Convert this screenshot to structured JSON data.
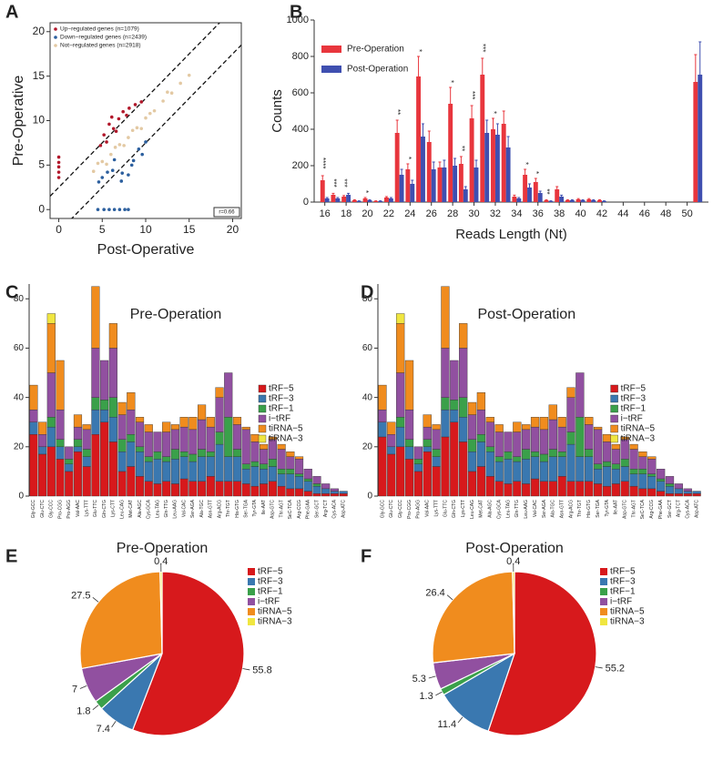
{
  "chart_data": [
    {
      "type": "scatter",
      "panel": "A",
      "xlabel": "Post-Operative",
      "ylabel": "Pre-Operative",
      "xlim": [
        -1,
        21
      ],
      "ylim": [
        -1,
        21
      ],
      "xticks": [
        0,
        5,
        10,
        15,
        20
      ],
      "yticks": [
        0,
        5,
        10,
        15,
        20
      ],
      "diagonals": [
        2.5,
        -2.5
      ],
      "annotation": "r=0.66",
      "legend": "top-left",
      "series": [
        {
          "name": "Up−regulated genes (n=1079)",
          "color": "#b2182b",
          "x": [
            0,
            0,
            0,
            0,
            0,
            5.2,
            5.8,
            6.3,
            6.9,
            7.4,
            8.1,
            5.5,
            6.6,
            7.8,
            8.8,
            4.8,
            9.5,
            6.1
          ],
          "y": [
            3.6,
            4.2,
            4.8,
            5.3,
            5.9,
            8.4,
            9.6,
            9.1,
            10.2,
            11.0,
            11.4,
            7.6,
            8.8,
            10.6,
            11.8,
            7.2,
            12.1,
            10.4
          ]
        },
        {
          "name": "Down−regulated genes (n=2439)",
          "color": "#2c5f9e",
          "x": [
            4.5,
            5.2,
            5.8,
            6.4,
            7.0,
            7.6,
            8.0,
            8.6,
            9.2,
            10.0,
            6.2,
            7.3,
            8.4,
            9.6,
            5.0,
            5.6,
            6.4,
            7.2,
            8.0,
            4.6
          ],
          "y": [
            0,
            0,
            0,
            0,
            0,
            0,
            0,
            5.5,
            6.8,
            7.6,
            4.4,
            4.1,
            5.0,
            6.2,
            3.6,
            4.2,
            5.6,
            3.2,
            3.9,
            3.1
          ]
        },
        {
          "name": "Not−regulated genes (n=2918)",
          "color": "#e3c9a3",
          "x": [
            4,
            5,
            6,
            7,
            8,
            9,
            10,
            11,
            12,
            13,
            14,
            15,
            4.5,
            5.5,
            6.5,
            7.5,
            8.5,
            9.5,
            10.5,
            12.5
          ],
          "y": [
            4.3,
            5.4,
            6.2,
            7.3,
            8.1,
            9.2,
            10.3,
            11.1,
            12.2,
            13.1,
            14.2,
            15.1,
            5.2,
            5.1,
            7.0,
            7.2,
            8.9,
            9.1,
            10.8,
            13.2
          ]
        }
      ]
    },
    {
      "type": "grouped_bar",
      "panel": "B",
      "xlabel": "Reads Length (Nt)",
      "ylabel": "Counts",
      "x": [
        16,
        17,
        18,
        19,
        20,
        21,
        22,
        23,
        24,
        25,
        26,
        27,
        28,
        29,
        30,
        31,
        32,
        33,
        34,
        35,
        36,
        37,
        38,
        39,
        40,
        41,
        42,
        51
      ],
      "xlim": [
        15,
        52
      ],
      "xticks": [
        16,
        18,
        20,
        22,
        24,
        26,
        28,
        30,
        32,
        34,
        36,
        38,
        40,
        42,
        44,
        46,
        48,
        50
      ],
      "ylim": [
        0,
        1000
      ],
      "yticks": [
        0,
        200,
        400,
        600,
        800,
        1000
      ],
      "legend": "top-left",
      "series": [
        {
          "name": "Pre-Operation",
          "color": "#e8363d",
          "values": [
            120,
            40,
            30,
            10,
            20,
            5,
            25,
            380,
            180,
            690,
            330,
            190,
            540,
            210,
            460,
            700,
            400,
            430,
            30,
            150,
            110,
            10,
            70,
            10,
            15,
            15,
            10,
            660
          ],
          "errors": [
            25,
            8,
            6,
            3,
            5,
            2,
            5,
            70,
            30,
            110,
            60,
            30,
            90,
            40,
            70,
            90,
            60,
            70,
            8,
            30,
            20,
            3,
            15,
            3,
            4,
            4,
            3,
            150
          ]
        },
        {
          "name": "Post-Operation",
          "color": "#3f4fb0",
          "values": [
            20,
            20,
            40,
            5,
            10,
            5,
            20,
            150,
            100,
            360,
            180,
            190,
            200,
            70,
            190,
            380,
            370,
            300,
            20,
            80,
            50,
            5,
            30,
            10,
            10,
            10,
            5,
            700
          ],
          "errors": [
            5,
            5,
            8,
            2,
            3,
            2,
            5,
            30,
            20,
            70,
            40,
            40,
            40,
            15,
            40,
            70,
            60,
            60,
            5,
            20,
            10,
            2,
            8,
            3,
            3,
            3,
            2,
            180
          ]
        }
      ],
      "annotations": [
        {
          "x": 16,
          "label": "****"
        },
        {
          "x": 17,
          "label": "***"
        },
        {
          "x": 18,
          "label": "***"
        },
        {
          "x": 20,
          "label": "*"
        },
        {
          "x": 23,
          "label": "**"
        },
        {
          "x": 24,
          "label": "*"
        },
        {
          "x": 25,
          "label": "*"
        },
        {
          "x": 28,
          "label": "*"
        },
        {
          "x": 29,
          "label": "**"
        },
        {
          "x": 30,
          "label": "***"
        },
        {
          "x": 31,
          "label": "***"
        },
        {
          "x": 32,
          "label": "*"
        },
        {
          "x": 35,
          "label": "*"
        },
        {
          "x": 36,
          "label": "*"
        },
        {
          "x": 37,
          "label": "**"
        }
      ]
    },
    {
      "type": "stacked_bar",
      "panel": "C",
      "title": "Pre-Operation",
      "ylim": [
        0,
        86
      ],
      "yticks": [
        0,
        20,
        40,
        60,
        80
      ],
      "legend": "right",
      "categories": [
        "Gly-GCC",
        "Glu-CTC",
        "Gly-CCC",
        "Pro-CGG",
        "Pro-AGG",
        "Val-AAC",
        "Lys-TTT",
        "Glu-TTC",
        "Gln-CTG",
        "Lys-CTT",
        "Leu-CAG",
        "Met-CAT",
        "Ala-AGC",
        "Cys-GCA",
        "Leu-TAG",
        "Gln-TTG",
        "Leu-AAG",
        "Val-CAC",
        "Ser-AGA",
        "Ala-TGC",
        "Asn-GTT",
        "Arg-ACG",
        "Thr-TGT",
        "His-GTG",
        "Ser-TGA",
        "Tyr-GTA",
        "Ile-AAT",
        "Asp-GTC",
        "Thr-AGT",
        "SeC-TCA",
        "Arg-CCG",
        "Phe-GAA",
        "Ser-GCT",
        "Arg-TCT",
        "Cys-ACA",
        "Asp-ATC"
      ],
      "series": [
        {
          "name": "tRF−5",
          "color": "#d7191c",
          "values": [
            25,
            17,
            20,
            15,
            10,
            18,
            12,
            25,
            30,
            22,
            10,
            12,
            8,
            6,
            5,
            6,
            5,
            7,
            6,
            6,
            8,
            6,
            6,
            6,
            5,
            4,
            5,
            6,
            4,
            3,
            3,
            2,
            1,
            1,
            1,
            1
          ]
        },
        {
          "name": "tRF−3",
          "color": "#3a78b0",
          "values": [
            5,
            3,
            8,
            5,
            3,
            2,
            4,
            10,
            5,
            10,
            8,
            10,
            10,
            8,
            10,
            8,
            10,
            9,
            8,
            10,
            8,
            15,
            10,
            10,
            6,
            8,
            6,
            6,
            5,
            6,
            5,
            4,
            3,
            2,
            1,
            1
          ]
        },
        {
          "name": "tRF−1",
          "color": "#3aa04a",
          "values": [
            0,
            0,
            4,
            3,
            2,
            3,
            3,
            5,
            4,
            8,
            5,
            3,
            2,
            2,
            3,
            2,
            4,
            2,
            3,
            3,
            2,
            5,
            16,
            3,
            2,
            2,
            2,
            3,
            2,
            2,
            1,
            1,
            1,
            0,
            0,
            0
          ]
        },
        {
          "name": "i−tRF",
          "color": "#9150a0",
          "values": [
            5,
            5,
            18,
            12,
            5,
            5,
            8,
            20,
            16,
            20,
            10,
            10,
            10,
            10,
            8,
            10,
            8,
            10,
            10,
            12,
            10,
            14,
            18,
            10,
            14,
            8,
            6,
            8,
            8,
            5,
            6,
            4,
            3,
            2,
            1,
            0
          ]
        },
        {
          "name": "tiRNA−5",
          "color": "#f08c1e",
          "values": [
            10,
            5,
            20,
            20,
            0,
            5,
            2,
            25,
            0,
            10,
            5,
            7,
            2,
            3,
            0,
            4,
            2,
            4,
            5,
            6,
            4,
            4,
            0,
            3,
            1,
            3,
            2,
            1,
            2,
            2,
            1,
            0,
            0,
            0,
            0,
            0
          ]
        },
        {
          "name": "tiRNA−3",
          "color": "#f0e640",
          "values": [
            0,
            0,
            4,
            0,
            0,
            0,
            0,
            0,
            0,
            0,
            0,
            0,
            0,
            0,
            0,
            0,
            0,
            0,
            0,
            0,
            0,
            0,
            0,
            0,
            0,
            0,
            0,
            0,
            0,
            0,
            0,
            0,
            0,
            0,
            0,
            0
          ]
        }
      ]
    },
    {
      "type": "stacked_bar",
      "panel": "D",
      "title": "Post-Operation",
      "ylim": [
        0,
        86
      ],
      "yticks": [
        0,
        20,
        40,
        60,
        80
      ],
      "legend": "right",
      "categories": [
        "Gly-GCC",
        "Glu-CTC",
        "Gly-CCC",
        "Pro-CGG",
        "Pro-AGG",
        "Val-AAC",
        "Lys-TTT",
        "Glu-TTC",
        "Gln-CTG",
        "Lys-CTT",
        "Leu-CAG",
        "Met-CAT",
        "Ala-AGC",
        "Cys-GCA",
        "Leu-TAG",
        "Gln-TTG",
        "Leu-AAG",
        "Val-CAC",
        "Ser-AGA",
        "Ala-TGC",
        "Asn-GTT",
        "Arg-ACG",
        "Thr-TGT",
        "His-GTG",
        "Ser-TGA",
        "Tyr-GTA",
        "Ile-AAT",
        "Asp-GTC",
        "Thr-AGT",
        "SeC-TCA",
        "Arg-CCG",
        "Phe-GAA",
        "Ser-GCT",
        "Arg-TCT",
        "Cys-ACA",
        "Asp-ATC"
      ],
      "series": [
        {
          "name": "tRF−5",
          "color": "#d7191c",
          "values": [
            24,
            17,
            20,
            15,
            10,
            18,
            12,
            24,
            30,
            22,
            10,
            12,
            8,
            6,
            5,
            6,
            5,
            7,
            6,
            6,
            8,
            6,
            6,
            6,
            5,
            4,
            5,
            6,
            4,
            3,
            3,
            2,
            1,
            1,
            1,
            1
          ]
        },
        {
          "name": "tRF−3",
          "color": "#3a78b0",
          "values": [
            6,
            3,
            8,
            5,
            3,
            2,
            4,
            11,
            5,
            10,
            8,
            10,
            10,
            8,
            10,
            8,
            10,
            9,
            8,
            10,
            8,
            15,
            10,
            10,
            6,
            8,
            6,
            6,
            5,
            6,
            5,
            4,
            3,
            2,
            1,
            1
          ]
        },
        {
          "name": "tRF−1",
          "color": "#3aa04a",
          "values": [
            0,
            0,
            4,
            3,
            2,
            3,
            3,
            5,
            4,
            8,
            5,
            3,
            2,
            2,
            3,
            2,
            4,
            2,
            3,
            3,
            2,
            5,
            16,
            3,
            2,
            2,
            2,
            3,
            2,
            2,
            1,
            1,
            1,
            0,
            0,
            0
          ]
        },
        {
          "name": "i−tRF",
          "color": "#9150a0",
          "values": [
            5,
            5,
            18,
            12,
            5,
            5,
            8,
            20,
            16,
            20,
            10,
            10,
            10,
            10,
            8,
            10,
            8,
            10,
            10,
            12,
            10,
            14,
            18,
            10,
            14,
            8,
            6,
            8,
            8,
            5,
            6,
            4,
            3,
            2,
            1,
            0
          ]
        },
        {
          "name": "tiRNA−5",
          "color": "#f08c1e",
          "values": [
            10,
            5,
            20,
            20,
            0,
            5,
            2,
            25,
            0,
            10,
            5,
            7,
            2,
            3,
            0,
            4,
            2,
            4,
            5,
            6,
            4,
            4,
            0,
            3,
            1,
            3,
            2,
            1,
            2,
            2,
            1,
            0,
            0,
            0,
            0,
            0
          ]
        },
        {
          "name": "tiRNA−3",
          "color": "#f0e640",
          "values": [
            0,
            0,
            4,
            0,
            0,
            0,
            0,
            0,
            0,
            0,
            0,
            0,
            0,
            0,
            0,
            0,
            0,
            0,
            0,
            0,
            0,
            0,
            0,
            0,
            0,
            0,
            0,
            0,
            0,
            0,
            0,
            0,
            0,
            0,
            0,
            0
          ]
        }
      ]
    },
    {
      "type": "pie",
      "panel": "E",
      "title": "Pre-Operation",
      "legend": "right",
      "categories": [
        "tRF−5",
        "tRF−3",
        "tRF−1",
        "i−tRF",
        "tiRNA−5",
        "tiRNA−3"
      ],
      "values": [
        55.8,
        7.4,
        1.8,
        7,
        27.5,
        0.4
      ],
      "colors": [
        "#d7191c",
        "#3a78b0",
        "#3aa04a",
        "#9150a0",
        "#f08c1e",
        "#f0e640"
      ]
    },
    {
      "type": "pie",
      "panel": "F",
      "title": "Post-Operation",
      "legend": "right",
      "categories": [
        "tRF−5",
        "tRF−3",
        "tRF−1",
        "i−tRF",
        "tiRNA−5",
        "tiRNA−3"
      ],
      "values": [
        55.2,
        11.4,
        1.3,
        5.3,
        26.4,
        0.4
      ],
      "colors": [
        "#d7191c",
        "#3a78b0",
        "#3aa04a",
        "#9150a0",
        "#f08c1e",
        "#f0e640"
      ]
    }
  ]
}
